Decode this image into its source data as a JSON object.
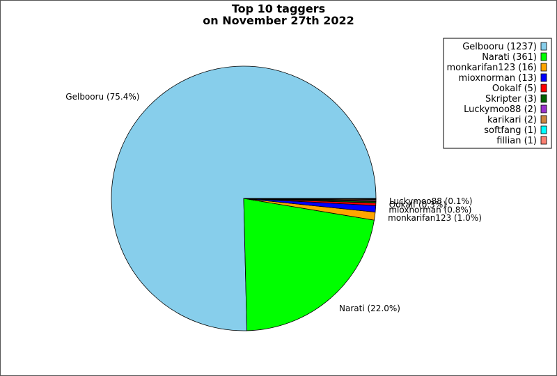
{
  "chart_data": {
    "type": "pie",
    "title": "Top 10 taggers\non November 27th 2022",
    "title_lines": [
      "Top 10 taggers",
      "on November 27th 2022"
    ],
    "legend_position": "top-right",
    "slices": [
      {
        "name": "Gelbooru",
        "value": 1237,
        "percent": 75.4,
        "color": "#87ceeb",
        "legend": "Gelbooru (1237)",
        "label": "Gelbooru (75.4%)"
      },
      {
        "name": "Narati",
        "value": 361,
        "percent": 22.0,
        "color": "#00ff00",
        "legend": "Narati (361)",
        "label": "Narati (22.0%)"
      },
      {
        "name": "monkarifan123",
        "value": 16,
        "percent": 1.0,
        "color": "#ffa500",
        "legend": "monkarifan123 (16)",
        "label": "monkarifan123 (1.0%)"
      },
      {
        "name": "mioxnorman",
        "value": 13,
        "percent": 0.8,
        "color": "#0000ff",
        "legend": "mioxnorman (13)",
        "label": "mioxnorman (0.8%)"
      },
      {
        "name": "Ookalf",
        "value": 5,
        "percent": 0.3,
        "color": "#ff0000",
        "legend": "Ookalf (5)",
        "label": "Ookalf (0.3%)"
      },
      {
        "name": "Skripter",
        "value": 3,
        "percent": 0.2,
        "color": "#006400",
        "legend": "Skripter (3)",
        "label": ""
      },
      {
        "name": "Luckymoo88",
        "value": 2,
        "percent": 0.1,
        "color": "#9932cc",
        "legend": "Luckymoo88 (2)",
        "label": "Luckymoo88 (0.1%)"
      },
      {
        "name": "karikari",
        "value": 2,
        "percent": 0.1,
        "color": "#cd853f",
        "legend": "karikari (2)",
        "label": ""
      },
      {
        "name": "softfang",
        "value": 1,
        "percent": 0.1,
        "color": "#00ffff",
        "legend": "softfang (1)",
        "label": ""
      },
      {
        "name": "fillian",
        "value": 1,
        "percent": 0.1,
        "color": "#fa8072",
        "legend": "fillian (1)",
        "label": ""
      }
    ]
  }
}
